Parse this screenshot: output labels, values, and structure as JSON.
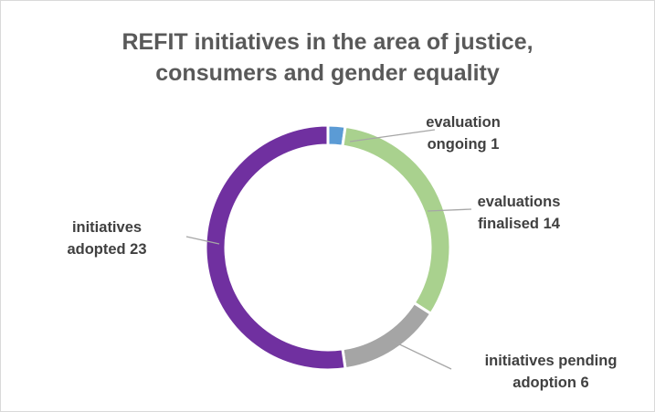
{
  "chart_data": {
    "type": "pie",
    "variant": "doughnut",
    "title_lines": [
      "REFIT initiatives in the area of justice,",
      "consumers and gender equality"
    ],
    "slices": [
      {
        "label_lines": [
          "evaluation",
          "ongoing 1"
        ],
        "value": 1,
        "color": "#5b9bd5"
      },
      {
        "label_lines": [
          "evaluations",
          "finalised 14"
        ],
        "value": 14,
        "color": "#a9d18e"
      },
      {
        "label_lines": [
          "initiatives pending",
          "adoption 6"
        ],
        "value": 6,
        "color": "#a5a5a5"
      },
      {
        "label_lines": [
          "initiatives",
          "adopted 23"
        ],
        "value": 23,
        "color": "#7030a0"
      }
    ],
    "leader_line_color": "#a6a6a6",
    "legend": "none"
  }
}
